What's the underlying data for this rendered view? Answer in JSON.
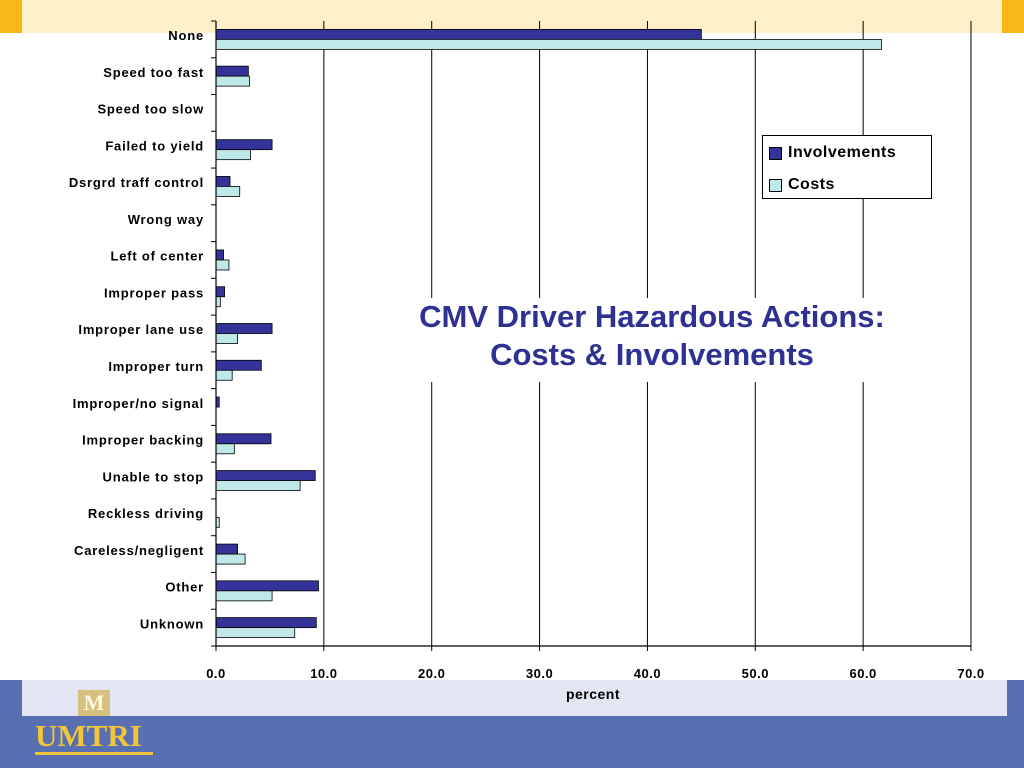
{
  "logo": {
    "mark": "M",
    "text": "UMTRI"
  },
  "chart_data": {
    "type": "bar",
    "orientation": "horizontal",
    "title_lines": [
      "CMV Driver Hazardous Actions:",
      "Costs & Involvements"
    ],
    "xlabel": "percent",
    "ylabel": "",
    "xlim": [
      0,
      70
    ],
    "xticks": [
      "0.0",
      "10.0",
      "20.0",
      "30.0",
      "40.0",
      "50.0",
      "60.0",
      "70.0"
    ],
    "grid": "vertical",
    "legend_position": "top-right",
    "categories": [
      "None",
      "Speed too fast",
      "Speed too slow",
      "Failed to yield",
      "Dsrgrd traff control",
      "Wrong way",
      "Left of center",
      "Improper pass",
      "Improper lane use",
      "Improper turn",
      "Improper/no signal",
      "Improper backing",
      "Unable to stop",
      "Reckless driving",
      "Careless/negligent",
      "Other",
      "Unknown"
    ],
    "series": [
      {
        "name": "Involvements",
        "color": "#333399",
        "values": [
          45.0,
          3.0,
          0.0,
          5.2,
          1.3,
          0.0,
          0.7,
          0.8,
          5.2,
          4.2,
          0.3,
          5.1,
          9.2,
          0.0,
          2.0,
          9.5,
          9.3
        ]
      },
      {
        "name": "Costs",
        "color": "#bfe8e8",
        "values": [
          61.7,
          3.1,
          0.0,
          3.2,
          2.2,
          0.0,
          1.2,
          0.4,
          2.0,
          1.5,
          0.0,
          1.7,
          7.8,
          0.3,
          2.7,
          5.2,
          7.3
        ]
      }
    ]
  }
}
